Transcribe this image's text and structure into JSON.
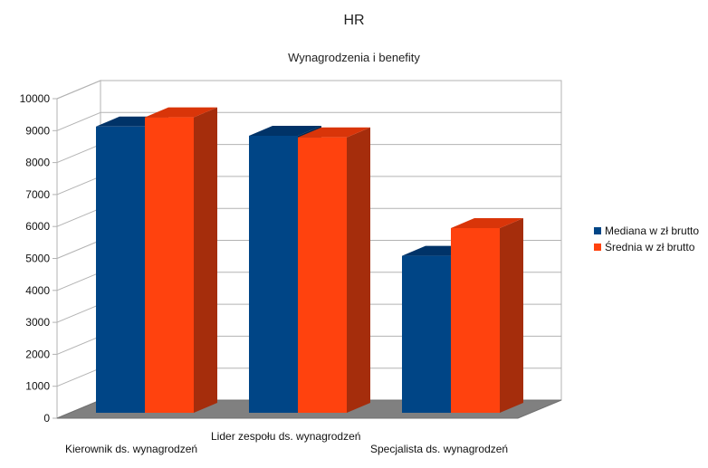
{
  "chart_data": {
    "type": "bar",
    "title": "HR",
    "subtitle": "Wynagrodzenia i benefity",
    "categories": [
      "Kierownik ds. wynagrodzeń",
      "Lider zespołu ds. wynagrodzeń",
      "Specjalista ds. wynagrodzeń"
    ],
    "series": [
      {
        "name": "Mediana w zł brutto",
        "values": [
          9300,
          9000,
          5100
        ],
        "color": "#004586"
      },
      {
        "name": "Średnia w zł brutto",
        "values": [
          9600,
          8950,
          6000
        ],
        "color": "#ff420e"
      }
    ],
    "ylim": [
      0,
      10000
    ],
    "yticks": [
      "0",
      "1000",
      "2000",
      "3000",
      "4000",
      "5000",
      "6000",
      "7000",
      "8000",
      "9000",
      "10000"
    ],
    "grid": true,
    "legend_position": "right",
    "style": "3d"
  }
}
